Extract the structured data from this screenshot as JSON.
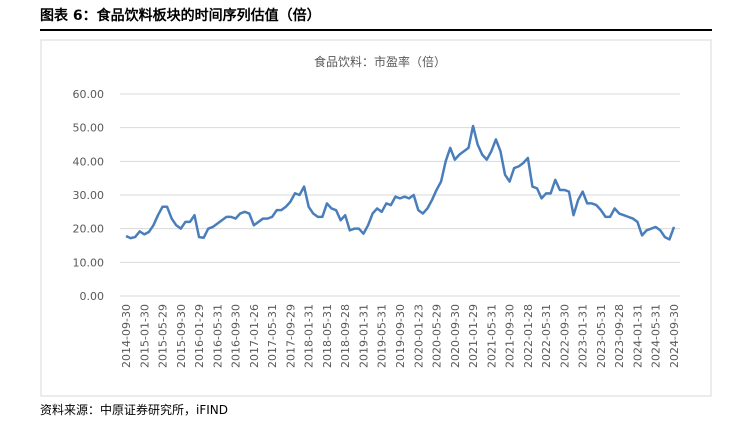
{
  "header": {
    "title": "图表 6：食品饮料板块的时间序列估值（倍）"
  },
  "chart_data": {
    "type": "line",
    "series": [
      {
        "name": "食品饮料：市盈率（倍）",
        "color": "#4a7ebb",
        "values": [
          17.8,
          17.2,
          17.5,
          19.2,
          18.3,
          19,
          21,
          24,
          26.5,
          26.5,
          23,
          21,
          20,
          22,
          22,
          24,
          17.5,
          17.3,
          20,
          20.5,
          21.5,
          22.5,
          23.5,
          23.5,
          23,
          24.5,
          25,
          24.5,
          21,
          22,
          23,
          23,
          23.5,
          25.5,
          25.5,
          26.5,
          28,
          30.5,
          30,
          32.5,
          26.5,
          24.5,
          23.5,
          23.5,
          27.5,
          26,
          25.5,
          22.5,
          24,
          19.5,
          20,
          20,
          18.5,
          21,
          24.5,
          26,
          25,
          27.5,
          27,
          29.5,
          29,
          29.5,
          29,
          30,
          25.5,
          24.5,
          26,
          28.5,
          31.5,
          34,
          40,
          44,
          40.5,
          42,
          43,
          44,
          50.5,
          45,
          42,
          40.5,
          43,
          46.5,
          43,
          36,
          34,
          38,
          38.5,
          39.5,
          41,
          32.5,
          32,
          29,
          30.5,
          30.5,
          34.5,
          31.5,
          31.5,
          31,
          24,
          28.5,
          31,
          27.5,
          27.5,
          27,
          25.5,
          23.5,
          23.5,
          26,
          24.5,
          24,
          23.5,
          23,
          22,
          18,
          19.5,
          20,
          20.5,
          19.5,
          17.5,
          16.8,
          20.5
        ]
      }
    ],
    "categories": [
      "2014-09-30",
      null,
      null,
      null,
      "2015-01-30",
      null,
      null,
      null,
      "2015-05-29",
      null,
      null,
      null,
      "2015-09-30",
      null,
      null,
      null,
      "2016-01-29",
      null,
      null,
      null,
      "2016-05-31",
      null,
      null,
      null,
      "2016-09-30",
      null,
      null,
      null,
      "2017-01-26",
      null,
      null,
      null,
      "2017-05-31",
      null,
      null,
      null,
      "2017-09-29",
      null,
      null,
      null,
      "2018-01-31",
      null,
      null,
      null,
      "2018-05-31",
      null,
      null,
      null,
      "2018-09-28",
      null,
      null,
      null,
      "2019-01-31",
      null,
      null,
      null,
      "2019-05-31",
      null,
      null,
      null,
      "2019-09-30",
      null,
      null,
      null,
      "2020-01-23",
      null,
      null,
      null,
      "2020-05-29",
      null,
      null,
      null,
      "2020-09-30",
      null,
      null,
      null,
      "2021-01-29",
      null,
      null,
      null,
      "2021-05-31",
      null,
      null,
      null,
      "2021-09-30",
      null,
      null,
      null,
      "2022-01-28",
      null,
      null,
      null,
      "2022-05-31",
      null,
      null,
      null,
      "2022-09-30",
      null,
      null,
      null,
      "2023-01-31",
      null,
      null,
      null,
      "2023-05-31",
      null,
      null,
      null,
      "2023-09-28",
      null,
      null,
      null,
      "2024-01-31",
      null,
      null,
      null,
      "2024-05-31",
      null,
      null,
      null,
      "2024-09-30"
    ],
    "ylim": [
      0,
      60
    ],
    "yticks": [
      {
        "value": 0,
        "label": "0.00"
      },
      {
        "value": 10,
        "label": "10.00"
      },
      {
        "value": 20,
        "label": "20.00"
      },
      {
        "value": 30,
        "label": "30.00"
      },
      {
        "value": 40,
        "label": "40.00"
      },
      {
        "value": 50,
        "label": "50.00"
      },
      {
        "value": 60,
        "label": "60.00"
      }
    ],
    "grid": true
  },
  "source": "资料来源：中原证券研究所，iFIND"
}
